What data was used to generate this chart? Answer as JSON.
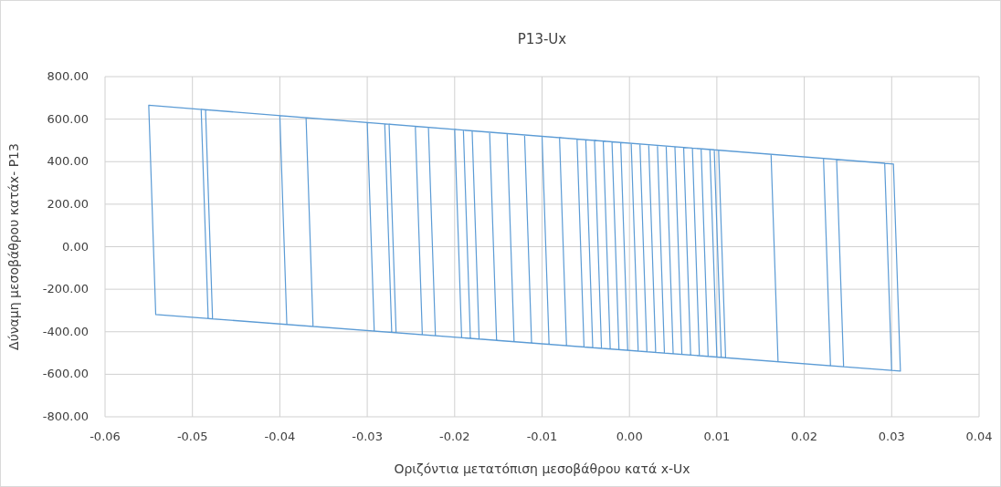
{
  "chart_data": {
    "type": "line",
    "title": "P13-Ux",
    "xlabel": "Οριζόντια μετατόπιση  μεσοβάθρου κατά x-Ux",
    "ylabel": "Δύναμη μεσοβάθρου κατάx- P13",
    "xlim": [
      -0.06,
      0.04
    ],
    "ylim": [
      -800,
      800
    ],
    "xticks": [
      {
        "value": -0.06,
        "label": "-0.06"
      },
      {
        "value": -0.05,
        "label": "-0.05"
      },
      {
        "value": -0.04,
        "label": "-0.04"
      },
      {
        "value": -0.03,
        "label": "-0.03"
      },
      {
        "value": -0.02,
        "label": "-0.02"
      },
      {
        "value": -0.01,
        "label": "-0.01"
      },
      {
        "value": 0,
        "label": "0.00"
      },
      {
        "value": 0.01,
        "label": "0.01"
      },
      {
        "value": 0.02,
        "label": "0.02"
      },
      {
        "value": 0.03,
        "label": "0.03"
      },
      {
        "value": 0.04,
        "label": "0.04"
      }
    ],
    "yticks": [
      {
        "value": -800,
        "label": "-800.00"
      },
      {
        "value": -600,
        "label": "-600.00"
      },
      {
        "value": -400,
        "label": "-400.00"
      },
      {
        "value": -200,
        "label": "-200.00"
      },
      {
        "value": 0,
        "label": "0.00"
      },
      {
        "value": 200,
        "label": "200.00"
      },
      {
        "value": 400,
        "label": "400.00"
      },
      {
        "value": 600,
        "label": "600.00"
      },
      {
        "value": 800,
        "label": "800.00"
      }
    ],
    "grid": true,
    "marker": "none",
    "line_style": "solid",
    "series": [
      {
        "color": "#5b9bd5",
        "x": [
          0.003,
          0.0022,
          -0.003,
          -0.0022,
          0.004,
          0.0032,
          -0.004,
          -0.0032,
          0.005,
          0.0042,
          -0.002,
          -0.0012,
          0.002,
          0.0012,
          -0.005,
          -0.0042,
          0.006,
          0.0052,
          -0.006,
          -0.0052,
          0.007,
          0.0062,
          -0.001,
          -0.0002,
          0.001,
          0.0002,
          -0.008,
          -0.0072,
          0.008,
          0.0072,
          -0.01,
          -0.0092,
          0.009,
          0.0082,
          -0.012,
          -0.0112,
          0.01,
          0.0092,
          -0.004,
          -0.0032,
          0.011,
          0.0102,
          -0.014,
          -0.0132,
          0.005,
          0.0042,
          -0.016,
          -0.0152,
          0.003,
          0.0022,
          -0.018,
          -0.0172,
          0.006,
          0.0052,
          -0.019,
          -0.0182,
          0.0105,
          0.0097,
          -0.02,
          -0.0192,
          0.007,
          0.0062,
          -0.023,
          -0.0222,
          0.004,
          0.0032,
          -0.0245,
          -0.0237,
          0.011,
          0.0102,
          -0.028,
          -0.0272,
          0.017,
          0.0162,
          -0.0275,
          -0.0267,
          0.009,
          0.0082,
          -0.03,
          -0.0292,
          0.023,
          0.0222,
          -0.037,
          -0.0362,
          0.0245,
          0.0237,
          -0.04,
          -0.0392,
          0.008,
          0.0072,
          -0.049,
          -0.0482,
          0.031,
          0.0302,
          -0.0485,
          -0.0477,
          0.03,
          0.0292,
          -0.055,
          -0.0542,
          0.002,
          0.0012
        ],
        "values": [
          -497,
          480,
          497,
          -481,
          -500,
          477,
          500,
          -478,
          -504,
          473,
          493,
          -484,
          -494,
          483,
          503,
          -475,
          -507,
          470,
          506,
          -472,
          -510,
          467,
          490,
          -487,
          -491,
          486,
          513,
          -466,
          -513,
          464,
          519,
          -459,
          -516,
          460,
          526,
          -453,
          -519,
          457,
          500,
          -478,
          -522,
          454,
          532,
          -447,
          -504,
          473,
          539,
          -441,
          -497,
          480,
          545,
          -434,
          -507,
          470,
          548,
          -431,
          -521,
          456,
          552,
          -428,
          -510,
          467,
          561,
          -419,
          -500,
          477,
          566,
          -414,
          -522,
          454,
          578,
          -403,
          -541,
          435,
          576,
          -405,
          -516,
          460,
          584,
          -397,
          -560,
          415,
          607,
          -375,
          -564,
          410,
          616,
          -366,
          -513,
          464,
          646,
          -338,
          -585,
          389,
          644,
          -339,
          -582,
          393,
          665,
          -319,
          -494,
          483
        ]
      }
    ]
  }
}
